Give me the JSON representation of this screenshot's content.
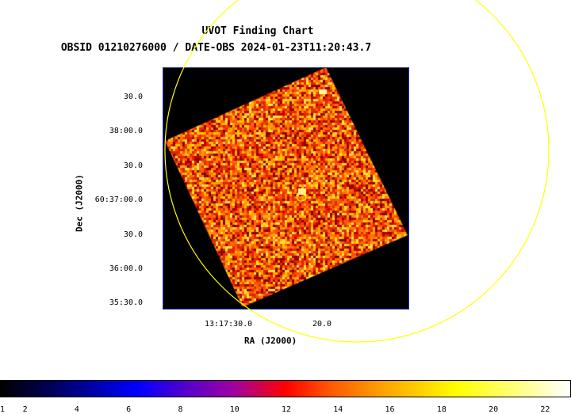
{
  "title": "UVOT Finding Chart",
  "subtitle": "OBSID 01210276000 / DATE-OBS 2024-01-23T11:20:43.7",
  "dec_axis": {
    "label": "Dec (J2000)",
    "ticks": [
      "30.0",
      "38:00.0",
      "30.0",
      "60:37:00.0",
      "30.0",
      "36:00.0",
      "35:30.0"
    ]
  },
  "ra_axis": {
    "label": "RA (J2000)",
    "ticks": [
      "13:17:30.0",
      "20.0"
    ]
  },
  "colorbar": {
    "ticks": [
      "1",
      "2",
      "4",
      "6",
      "8",
      "10",
      "12",
      "14",
      "16",
      "18",
      "20",
      "22"
    ],
    "range": [
      1,
      23
    ]
  },
  "colors": {
    "circle": "#ffff00",
    "frame_border": "#2030c0",
    "background": "#000000"
  }
}
